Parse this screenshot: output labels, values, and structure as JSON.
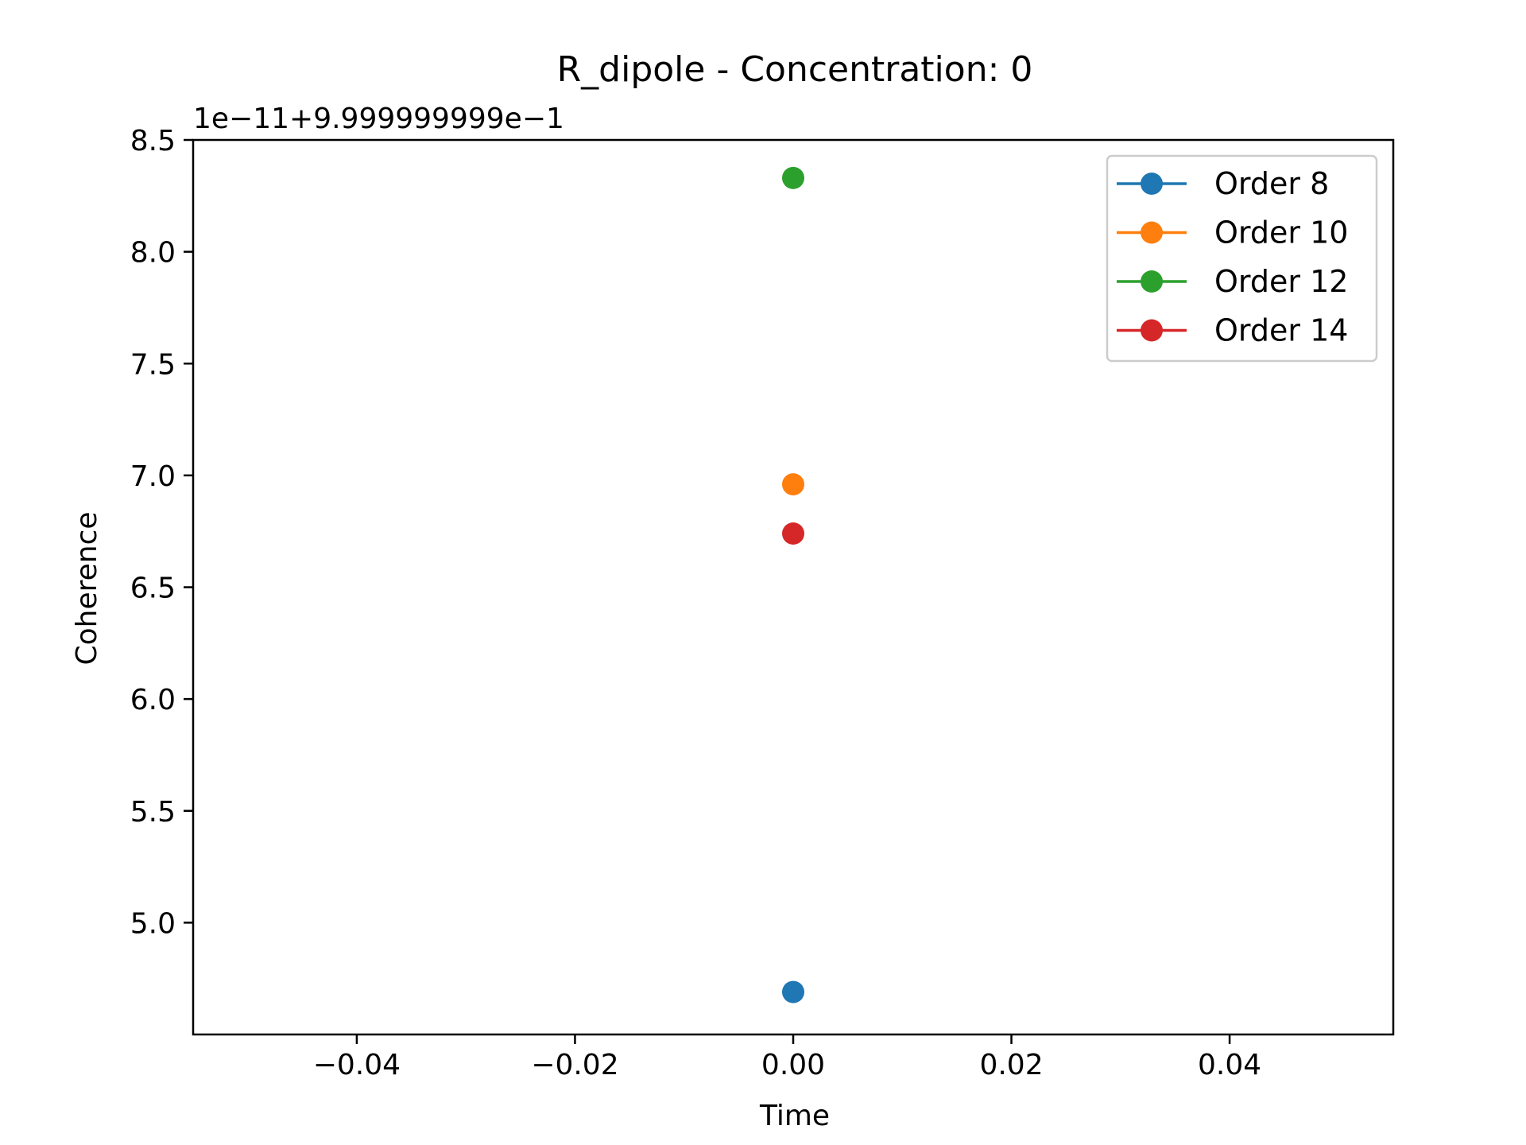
{
  "chart_data": {
    "type": "scatter",
    "title": "R_dipole - Concentration: 0",
    "xlabel": "Time",
    "ylabel": "Coherence",
    "y_offset_text": "1e−11+9.999999999e−1",
    "xlim": [
      -0.055,
      0.055
    ],
    "ylim": [
      4.5,
      8.5
    ],
    "xticks": [
      -0.04,
      -0.02,
      0.0,
      0.02,
      0.04
    ],
    "xtick_labels": [
      "−0.04",
      "−0.02",
      "0.00",
      "0.02",
      "0.04"
    ],
    "yticks": [
      5.0,
      5.5,
      6.0,
      6.5,
      7.0,
      7.5,
      8.0,
      8.5
    ],
    "ytick_labels": [
      "5.0",
      "5.5",
      "6.0",
      "6.5",
      "7.0",
      "7.5",
      "8.0",
      "8.5"
    ],
    "grid": false,
    "legend_position": "top-right",
    "series": [
      {
        "name": "Order 8",
        "color": "#1f77b4",
        "x": [
          0.0
        ],
        "y": [
          4.69
        ]
      },
      {
        "name": "Order 10",
        "color": "#ff7f0e",
        "x": [
          0.0
        ],
        "y": [
          6.96
        ]
      },
      {
        "name": "Order 12",
        "color": "#2ca02c",
        "x": [
          0.0
        ],
        "y": [
          8.33
        ]
      },
      {
        "name": "Order 14",
        "color": "#d62728",
        "x": [
          0.0
        ],
        "y": [
          6.74
        ]
      }
    ]
  }
}
